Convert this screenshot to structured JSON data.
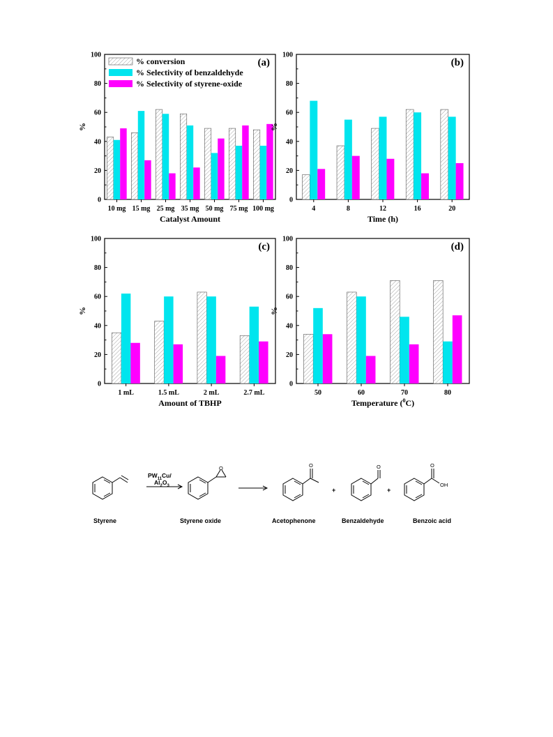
{
  "colors": {
    "conversion_fill": "#ffffff",
    "conversion_hatch": "#a0a0a0",
    "benzaldehyde": "#00e5ee",
    "styrene_oxide": "#ff00ff",
    "axis": "#000000"
  },
  "legend": {
    "placement": "top-left (panel a)",
    "items": [
      "% conversion",
      "% Selectivity of benzaldehyde",
      "% Selectivity of styrene-oxide"
    ]
  },
  "chart_data": [
    {
      "type": "bar",
      "panel": "(a)",
      "xlabel": "Catalyst Amount",
      "ylabel": "%",
      "ylim": [
        0,
        100
      ],
      "yticks": [
        0,
        20,
        40,
        60,
        80,
        100
      ],
      "categories": [
        "10 mg",
        "15 mg",
        "25 mg",
        "35 mg",
        "50 mg",
        "75 mg",
        "100 mg"
      ],
      "series": [
        {
          "name": "% conversion",
          "values": [
            43,
            46,
            62,
            59,
            49,
            49,
            48
          ]
        },
        {
          "name": "% Selectivity of benzaldehyde",
          "values": [
            41,
            61,
            59,
            51,
            32,
            37,
            37
          ]
        },
        {
          "name": "% Selectivity of styrene-oxide",
          "values": [
            49,
            27,
            18,
            22,
            42,
            51,
            52
          ]
        }
      ]
    },
    {
      "type": "bar",
      "panel": "(b)",
      "xlabel": "Time (h)",
      "ylabel": "%",
      "ylim": [
        0,
        100
      ],
      "yticks": [
        0,
        20,
        40,
        60,
        80,
        100
      ],
      "categories": [
        "4",
        "8",
        "12",
        "16",
        "20"
      ],
      "series": [
        {
          "name": "% conversion",
          "values": [
            17,
            37,
            49,
            62,
            62
          ]
        },
        {
          "name": "% Selectivity of benzaldehyde",
          "values": [
            68,
            55,
            57,
            60,
            57
          ]
        },
        {
          "name": "% Selectivity of styrene-oxide",
          "values": [
            21,
            30,
            28,
            18,
            25
          ]
        }
      ]
    },
    {
      "type": "bar",
      "panel": "(c)",
      "xlabel": "Amount of TBHP",
      "ylabel": "%",
      "ylim": [
        0,
        100
      ],
      "yticks": [
        0,
        20,
        40,
        60,
        80,
        100
      ],
      "categories": [
        "1 mL",
        "1.5 mL",
        "2 mL",
        "2.7 mL"
      ],
      "series": [
        {
          "name": "% conversion",
          "values": [
            35,
            43,
            63,
            33
          ]
        },
        {
          "name": "% Selectivity of benzaldehyde",
          "values": [
            62,
            60,
            60,
            53
          ]
        },
        {
          "name": "% Selectivity of styrene-oxide",
          "values": [
            28,
            27,
            19,
            29
          ]
        }
      ]
    },
    {
      "type": "bar",
      "panel": "(d)",
      "xlabel": "Temperature (",
      "xlabel_sup": "0",
      "xlabel_tail": "C)",
      "ylabel": "%",
      "ylim": [
        0,
        100
      ],
      "yticks": [
        0,
        20,
        40,
        60,
        80,
        100
      ],
      "categories": [
        "50",
        "60",
        "70",
        "80"
      ],
      "series": [
        {
          "name": "% conversion",
          "values": [
            34,
            63,
            71,
            71
          ]
        },
        {
          "name": "% Selectivity of benzaldehyde",
          "values": [
            52,
            60,
            46,
            29
          ]
        },
        {
          "name": "% Selectivity of styrene-oxide",
          "values": [
            34,
            19,
            27,
            47
          ]
        }
      ]
    }
  ],
  "scheme": {
    "catalyst_line1": "PW",
    "catalyst_sub1": "11",
    "catalyst_line1_tail": "Cu/",
    "catalyst_line2": "Al",
    "catalyst_sub2a": "2",
    "catalyst_mid2": "O",
    "catalyst_sub2b": "3",
    "labels": [
      "Styrene",
      "Styrene oxide",
      "Acetophenone",
      "Benzaldehyde",
      "Benzoic acid"
    ],
    "plus": "+",
    "atom_O": "O",
    "atom_OH": "OH"
  }
}
